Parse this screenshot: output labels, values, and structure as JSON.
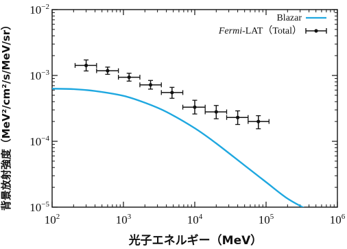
{
  "chart_data": {
    "type": "line",
    "x_axis": {
      "label": "光子エネルギー（MeV）",
      "scale": "log",
      "range": [
        100,
        1000000
      ],
      "ticks": [
        {
          "base": "10",
          "exp": "2",
          "value": 100
        },
        {
          "base": "10",
          "exp": "3",
          "value": 1000
        },
        {
          "base": "10",
          "exp": "4",
          "value": 10000
        },
        {
          "base": "10",
          "exp": "5",
          "value": 100000
        },
        {
          "base": "10",
          "exp": "6",
          "value": 1000000
        }
      ]
    },
    "y_axis": {
      "label": "背景放射強度（MeV²/cm²/s/MeV/sr）",
      "scale": "log",
      "range": [
        1e-05,
        0.01
      ],
      "ticks": [
        {
          "base": "10",
          "exp": "−5",
          "value": 1e-05
        },
        {
          "base": "10",
          "exp": "−4",
          "value": 0.0001
        },
        {
          "base": "10",
          "exp": "−3",
          "value": 0.001
        },
        {
          "base": "10",
          "exp": "−2",
          "value": 0.01
        }
      ]
    },
    "grid": false,
    "legend_position": "top-right",
    "series": [
      {
        "name": "Blazar",
        "kind": "curve",
        "color": "#1fa8e0",
        "points": [
          {
            "x": 100,
            "y": 0.00063
          },
          {
            "x": 200,
            "y": 0.00062
          },
          {
            "x": 400,
            "y": 0.00058
          },
          {
            "x": 1000,
            "y": 0.00049
          },
          {
            "x": 2000,
            "y": 0.000385
          },
          {
            "x": 4000,
            "y": 0.00028
          },
          {
            "x": 10000,
            "y": 0.000158
          },
          {
            "x": 20000,
            "y": 9.3e-05
          },
          {
            "x": 50000,
            "y": 4.3e-05
          },
          {
            "x": 100000,
            "y": 2.4e-05
          },
          {
            "x": 200000,
            "y": 1.35e-05
          },
          {
            "x": 400000,
            "y": 8.9e-06
          }
        ]
      },
      {
        "name_italic": "Fermi",
        "name_rest": "-LAT（Total）",
        "kind": "errorbar",
        "color": "#111111",
        "points": [
          {
            "x": 300,
            "y": 0.00142,
            "xlo": 210,
            "xhi": 420,
            "ylo": 0.00117,
            "yhi": 0.00172
          },
          {
            "x": 600,
            "y": 0.00118,
            "xlo": 420,
            "xhi": 850,
            "ylo": 0.00104,
            "yhi": 0.00134
          },
          {
            "x": 1200,
            "y": 0.00094,
            "xlo": 850,
            "xhi": 1700,
            "ylo": 0.00082,
            "yhi": 0.00108
          },
          {
            "x": 2400,
            "y": 0.00072,
            "xlo": 1700,
            "xhi": 3400,
            "ylo": 0.00062,
            "yhi": 0.00084
          },
          {
            "x": 4800,
            "y": 0.00055,
            "xlo": 3400,
            "xhi": 6800,
            "ylo": 0.00045,
            "yhi": 0.00066
          },
          {
            "x": 10000,
            "y": 0.00033,
            "xlo": 6800,
            "xhi": 14000,
            "ylo": 0.00026,
            "yhi": 0.00042
          },
          {
            "x": 20000,
            "y": 0.00028,
            "xlo": 14000,
            "xhi": 28000,
            "ylo": 0.00022,
            "yhi": 0.00035
          },
          {
            "x": 40000,
            "y": 0.00023,
            "xlo": 28000,
            "xhi": 56000,
            "ylo": 0.00018,
            "yhi": 0.00029
          },
          {
            "x": 78000,
            "y": 0.0002,
            "xlo": 56000,
            "xhi": 110000,
            "ylo": 0.000155,
            "yhi": 0.000245
          }
        ]
      }
    ]
  }
}
